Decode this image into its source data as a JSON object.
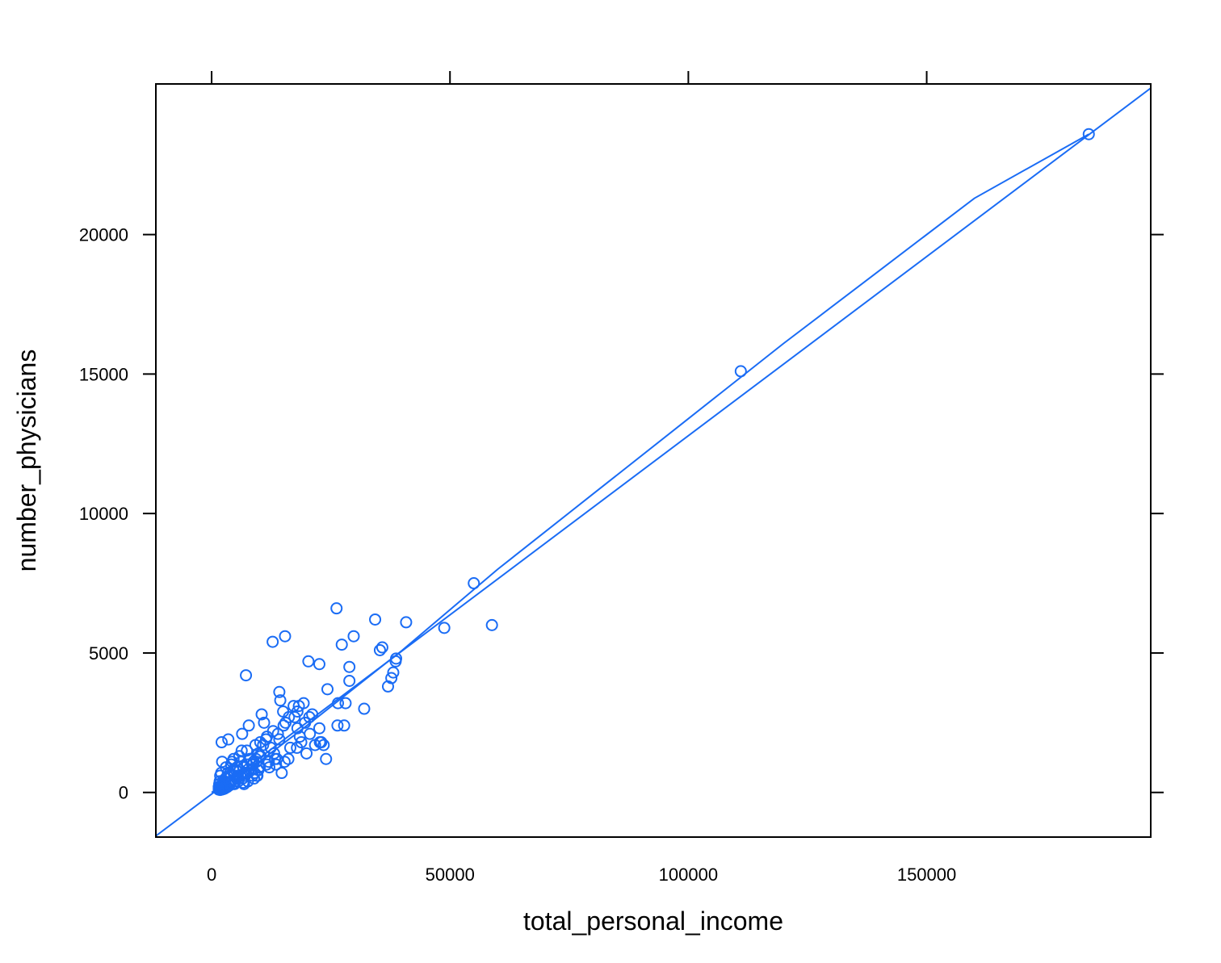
{
  "chart_data": {
    "type": "scatter",
    "title": "",
    "xlabel": "total_personal_income",
    "ylabel": "number_physicians",
    "xlim": [
      -11700,
      197000
    ],
    "ylim": [
      -1600,
      25400
    ],
    "x_ticks": [
      0,
      50000,
      100000,
      150000
    ],
    "y_ticks": [
      0,
      5000,
      10000,
      15000,
      20000
    ],
    "x_tick_labels": [
      "0",
      "50000",
      "100000",
      "150000"
    ],
    "y_tick_labels": [
      "0",
      "5000",
      "10000",
      "15000",
      "20000"
    ],
    "grid": false,
    "legend": "none",
    "colors": {
      "points": "#1a6cf5",
      "lines": "#1a6cf5",
      "frame": "#000000"
    },
    "series": [
      {
        "type": "scatter",
        "x": [
          184000,
          111000,
          55000,
          58800,
          48800,
          40800,
          38700,
          38600,
          38100,
          37700,
          37000,
          35800,
          35300,
          34300,
          32000,
          29800,
          28900,
          28900,
          28100,
          27800,
          27300,
          26500,
          26400,
          26200,
          24300,
          24000,
          23500,
          23000,
          22700,
          22600,
          22600,
          21700,
          21100,
          20600,
          20500,
          20300,
          19900,
          19600,
          19300,
          18800,
          18500,
          18300,
          18000,
          18000,
          17900,
          17400,
          17200,
          16500,
          16200,
          16100,
          15500,
          15400,
          15300,
          15100,
          15000,
          14700,
          14400,
          14200,
          14200,
          13900,
          13700,
          13500,
          13100,
          12800,
          12400,
          12100,
          12000,
          11500,
          11400,
          11000,
          10800,
          10500,
          10300,
          10100,
          10000,
          9800,
          9600,
          9400,
          9200,
          9000,
          8700,
          8500,
          8300,
          8000,
          7800,
          7500,
          7200,
          7000,
          6700,
          6500,
          6200,
          6000,
          5700,
          5500,
          5200,
          5000,
          4700,
          4400,
          4200,
          4000,
          3700,
          3500,
          3300,
          3100,
          2800,
          2600,
          2400,
          2200,
          2000,
          1800,
          7200,
          6400,
          3500,
          2100,
          9800,
          8800,
          9300,
          7400,
          5800,
          4300,
          6900,
          8600,
          9900,
          8100,
          6300,
          5100,
          4600,
          3900,
          3000,
          2700,
          2500,
          2300,
          1900,
          1700,
          1600,
          1500,
          10200,
          11600,
          12900,
          13300,
          9500,
          8900,
          7600,
          6600,
          5900,
          5300,
          4800,
          4100,
          3400,
          2900,
          2000,
          1800,
          1700,
          1600,
          1500,
          1500,
          2200,
          3000,
          3800,
          4500,
          5600,
          6800
        ],
        "y": [
          23600,
          15100,
          7500,
          6000,
          5900,
          6100,
          4800,
          4700,
          4300,
          4100,
          3800,
          5200,
          5100,
          6200,
          3000,
          5600,
          4000,
          4500,
          3200,
          2400,
          5300,
          3200,
          2400,
          6600,
          3700,
          1200,
          1700,
          1800,
          1800,
          4600,
          2300,
          1700,
          2800,
          2100,
          2700,
          4700,
          1400,
          2500,
          3200,
          1800,
          2000,
          3100,
          2900,
          2300,
          1600,
          2700,
          3100,
          1600,
          2700,
          1200,
          2500,
          5600,
          1100,
          2400,
          2900,
          700,
          3300,
          3600,
          1900,
          2100,
          1200,
          1000,
          1400,
          5400,
          1600,
          900,
          1100,
          1000,
          1900,
          2500,
          1700,
          2800,
          1300,
          900,
          1300,
          800,
          600,
          1100,
          1700,
          700,
          1000,
          1000,
          800,
          1200,
          2400,
          1000,
          700,
          600,
          900,
          500,
          1100,
          600,
          500,
          600,
          500,
          400,
          600,
          300,
          400,
          350,
          250,
          300,
          200,
          180,
          150,
          130,
          120,
          110,
          100,
          90,
          4200,
          2100,
          1900,
          1800,
          1400,
          1100,
          1200,
          1500,
          1300,
          1100,
          700,
          600,
          900,
          1200,
          1500,
          800,
          1200,
          700,
          500,
          400,
          300,
          250,
          200,
          150,
          120,
          100,
          1800,
          2000,
          2200,
          1200,
          600,
          500,
          400,
          350,
          800,
          900,
          300,
          1000,
          700,
          500,
          700,
          600,
          400,
          300,
          200,
          150,
          1100,
          900,
          600,
          800,
          400,
          300
        ],
        "label": ""
      },
      {
        "type": "line",
        "name": "",
        "x": [
          -11700,
          197000
        ],
        "y": [
          -1560,
          25250
        ]
      },
      {
        "type": "line",
        "name": "",
        "x": [
          0,
          10000,
          20000,
          40000,
          60000,
          80000,
          100000,
          120000,
          140000,
          160000,
          184000
        ],
        "y": [
          0,
          1100,
          2400,
          5100,
          8000,
          10700,
          13400,
          16100,
          18700,
          21300,
          23600
        ]
      }
    ]
  }
}
